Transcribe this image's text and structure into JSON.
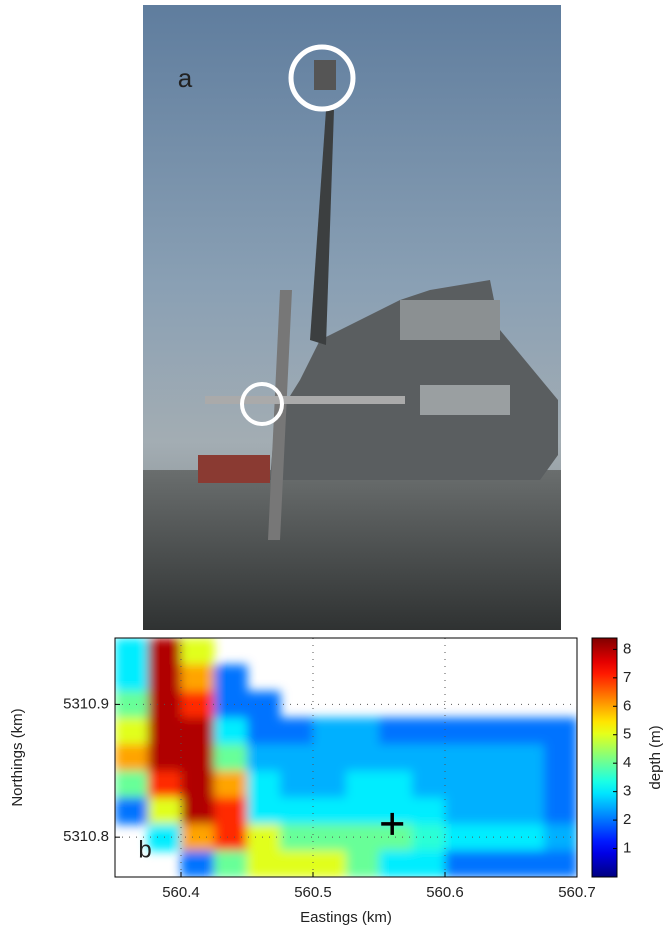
{
  "photo": {
    "label": "a"
  },
  "chart_data": {
    "type": "heatmap",
    "label": "b",
    "x_label": "Eastings (km)",
    "y_label": "Northings (km)",
    "colorbar_label": "depth (m)",
    "x": [
      560.3625,
      560.3875,
      560.4125,
      560.4375,
      560.4625,
      560.4875,
      560.5125,
      560.5375,
      560.5625,
      560.5875,
      560.6125,
      560.6375,
      560.6625,
      560.6875
    ],
    "y": [
      5310.94,
      5310.92,
      5310.9,
      5310.88,
      5310.86,
      5310.84,
      5310.82,
      5310.8,
      5310.78
    ],
    "values": [
      [
        3,
        8,
        5,
        null,
        null,
        null,
        null,
        null,
        null,
        null,
        null,
        null,
        null,
        null
      ],
      [
        3,
        8,
        6,
        2,
        null,
        null,
        null,
        null,
        null,
        null,
        null,
        null,
        null,
        null
      ],
      [
        4,
        8,
        7,
        2,
        2,
        null,
        null,
        null,
        null,
        null,
        null,
        null,
        null,
        null
      ],
      [
        5,
        8,
        8,
        3,
        2,
        2,
        2.5,
        2.5,
        2,
        2,
        2,
        2,
        2,
        2
      ],
      [
        6,
        8,
        8,
        4,
        2.5,
        2.5,
        2.5,
        2.5,
        2.5,
        2.5,
        2.5,
        2.5,
        2.5,
        2
      ],
      [
        4,
        7,
        8,
        6,
        3,
        2.5,
        2.5,
        3,
        3,
        2.5,
        2.5,
        2.5,
        2.5,
        2
      ],
      [
        2,
        5,
        8,
        7,
        3,
        3,
        3,
        3,
        3,
        3,
        2.5,
        2.5,
        2.5,
        2
      ],
      [
        null,
        3,
        6,
        7,
        5,
        4,
        4,
        4,
        4,
        3.5,
        3,
        3,
        3,
        2.5
      ],
      [
        null,
        null,
        2,
        4,
        5,
        5,
        5,
        4,
        3,
        3,
        2,
        2,
        2,
        2
      ]
    ],
    "xlim": [
      560.35,
      560.7
    ],
    "xticks": [
      560.4,
      560.5,
      560.6,
      560.7
    ],
    "ylim": [
      5310.77,
      5310.95
    ],
    "yticks": [
      5310.8,
      5310.9
    ],
    "clim": [
      0,
      8.4
    ],
    "cticks": [
      1,
      2,
      3,
      4,
      5,
      6,
      7,
      8
    ],
    "colormap": "jet",
    "grid": true,
    "marker": {
      "x": 560.56,
      "y": 5310.81
    }
  }
}
